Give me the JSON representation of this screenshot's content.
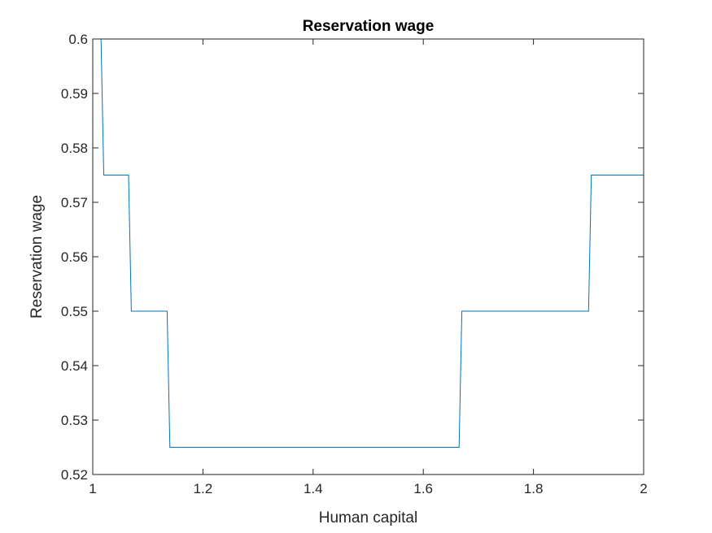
{
  "chart_data": {
    "type": "line",
    "title": "Reservation wage",
    "xlabel": "Human capital",
    "ylabel": "Reservation wage",
    "xlim": [
      1,
      2
    ],
    "ylim": [
      0.52,
      0.6
    ],
    "xticks": [
      1,
      1.2,
      1.4,
      1.6,
      1.8,
      2
    ],
    "xtick_labels": [
      "1",
      "1.2",
      "1.4",
      "1.6",
      "1.8",
      "2"
    ],
    "yticks": [
      0.52,
      0.53,
      0.54,
      0.55,
      0.56,
      0.57,
      0.58,
      0.59,
      0.6
    ],
    "ytick_labels": [
      "0.52",
      "0.53",
      "0.54",
      "0.55",
      "0.56",
      "0.57",
      "0.58",
      "0.59",
      "0.6"
    ],
    "grid": false,
    "line_color": "#0072BD",
    "axis_color": "#262626",
    "series": [
      {
        "x": [
          1.0,
          1.015,
          1.02,
          1.065,
          1.07,
          1.135,
          1.14,
          1.665,
          1.67,
          1.9,
          1.905,
          2.0
        ],
        "y": [
          0.6,
          0.6,
          0.575,
          0.575,
          0.55,
          0.55,
          0.525,
          0.525,
          0.55,
          0.55,
          0.575,
          0.575
        ]
      }
    ]
  }
}
